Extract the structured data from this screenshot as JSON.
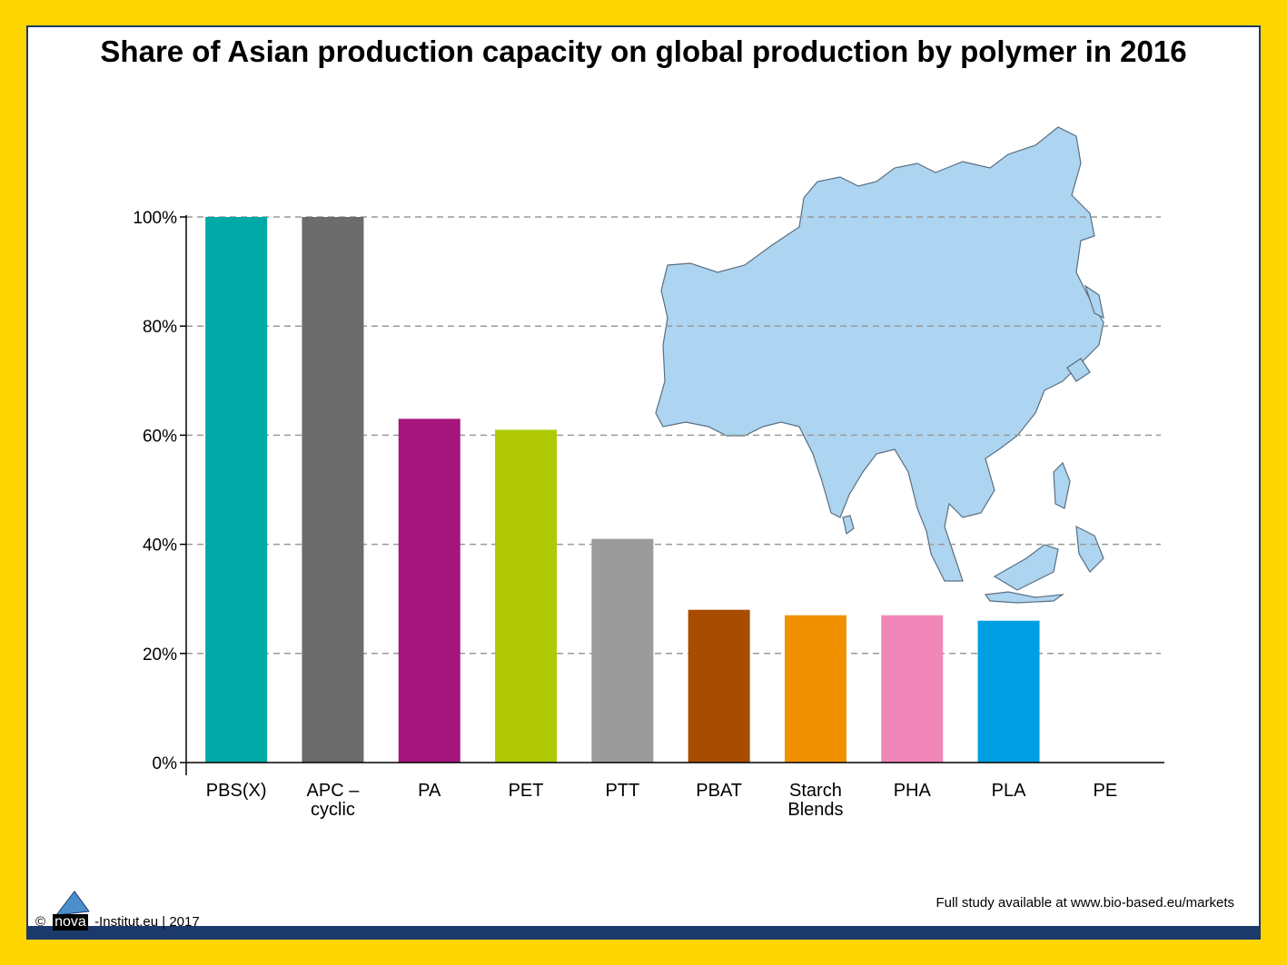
{
  "title": "Share of Asian production capacity on global production by polymer in 2016",
  "chart_data": {
    "type": "bar",
    "categories": [
      [
        "PBS(X)"
      ],
      [
        "APC –",
        "cyclic"
      ],
      [
        "PA"
      ],
      [
        "PET"
      ],
      [
        "PTT"
      ],
      [
        "PBAT"
      ],
      [
        "Starch",
        "Blends"
      ],
      [
        "PHA"
      ],
      [
        "PLA"
      ],
      [
        "PE"
      ]
    ],
    "values": [
      100,
      100,
      63,
      61,
      41,
      28,
      27,
      27,
      26,
      0
    ],
    "colors": [
      "#00A9A5",
      "#6C6C6C",
      "#A6147E",
      "#AFCA05",
      "#9B9B9B",
      "#A84C00",
      "#F29100",
      "#F087B8",
      "#009FE3",
      "#FFFFFF"
    ],
    "y_ticks": [
      "0%",
      "20%",
      "40%",
      "60%",
      "80%",
      "100%"
    ],
    "ylim": [
      0,
      100
    ],
    "grid": "horizontal dashed"
  },
  "footer": {
    "copyright": "©",
    "logo_text": "nova",
    "institute": "-Institut.eu | 2017",
    "study_note": "Full study available at www.bio-based.eu/markets"
  },
  "map": {
    "icon": "asia-map"
  },
  "colors": {
    "frame": "#FFD500",
    "bar_footer": "#1B3A6B",
    "map_fill": "#ADD4F0"
  }
}
